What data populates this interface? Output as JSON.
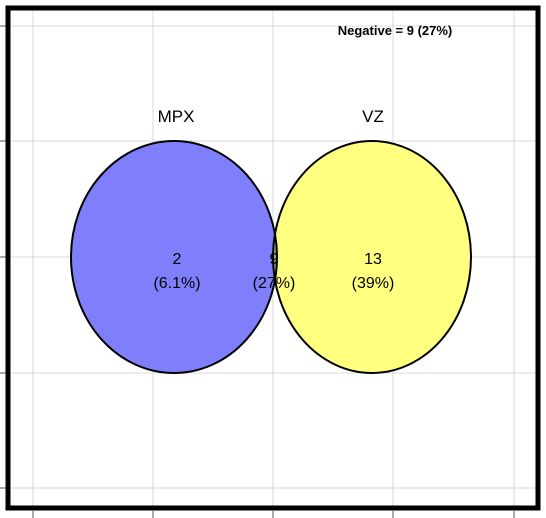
{
  "venn": {
    "sets": [
      {
        "name": "MPX",
        "color": "#7f7ffb"
      },
      {
        "name": "VZ",
        "color": "#ffff80"
      }
    ],
    "overlap_color": "#a9a878",
    "regions": {
      "mpx_only": {
        "count": "2",
        "percent": "(6.1%)"
      },
      "both": {
        "count": "9",
        "percent": "(27%)"
      },
      "vz_only": {
        "count": "13",
        "percent": "(39%)"
      }
    },
    "negative_label": "Negative = 9 (27%)"
  },
  "plot": {
    "frame_color": "#000000",
    "grid_color": "#d9d9d9"
  }
}
